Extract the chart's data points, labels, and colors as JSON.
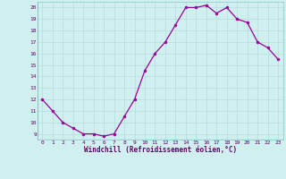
{
  "x": [
    0,
    1,
    2,
    3,
    4,
    5,
    6,
    7,
    8,
    9,
    10,
    11,
    12,
    13,
    14,
    15,
    16,
    17,
    18,
    19,
    20,
    21,
    22,
    23
  ],
  "y": [
    12,
    11,
    10,
    9.5,
    9,
    9,
    8.8,
    9,
    10.5,
    12,
    14.5,
    16,
    17,
    18.5,
    20,
    20,
    20.2,
    19.5,
    20,
    19,
    18.7,
    17,
    16.5,
    15.5
  ],
  "line_color": "#990099",
  "marker_color": "#990099",
  "bg_color": "#d0f0f0",
  "grid_color": "#b8e0e0",
  "xlabel": "Windchill (Refroidissement éolien,°C)",
  "xlabel_color": "#660066",
  "tick_color": "#660066",
  "ylim": [
    8.5,
    20.5
  ],
  "yticks": [
    9,
    10,
    11,
    12,
    13,
    14,
    15,
    16,
    17,
    18,
    19,
    20
  ],
  "xlim": [
    -0.5,
    23.5
  ],
  "xticks": [
    0,
    1,
    2,
    3,
    4,
    5,
    6,
    7,
    8,
    9,
    10,
    11,
    12,
    13,
    14,
    15,
    16,
    17,
    18,
    19,
    20,
    21,
    22,
    23
  ]
}
